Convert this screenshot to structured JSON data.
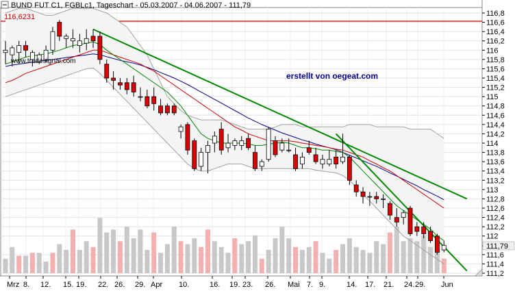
{
  "chart_data": {
    "type": "candlestick",
    "title": "BUND FUT C1, FGBLc1, Tageschart - 05.03.2007 - 04.06.2007 - 111,79",
    "watermark": "www.tradesignal.com",
    "annotation": "erstellt von oegeat.com",
    "resistance_label": "116,6231",
    "resistance_value": 116.6231,
    "grid": true,
    "ylim": [
      111.2,
      116.9
    ],
    "y_ticks": [
      "116,8",
      "116,6",
      "116,4",
      "116,2",
      "116",
      "115,8",
      "115,6",
      "115,4",
      "115,2",
      "115",
      "114,8",
      "114,6",
      "114,4",
      "114,2",
      "114",
      "113,8",
      "113,6",
      "113,4",
      "113,2",
      "113",
      "112,8",
      "112,6",
      "112,4",
      "112,2",
      "112",
      "111,79",
      "111,6",
      "111,4",
      "111,2"
    ],
    "x_ticks": [
      "Mrz",
      "8.",
      "12.",
      "15.",
      "19.",
      "22.",
      "26.",
      "29.",
      "Apr",
      "10.",
      "16.",
      "19.",
      "23.",
      "26.",
      "Mai",
      "7.",
      "9.",
      "14.",
      "17.",
      "21.",
      "24.",
      "29.",
      "Jun"
    ],
    "candles": [
      {
        "o": 115.95,
        "h": 116.2,
        "l": 115.7,
        "c": 116.0
      },
      {
        "o": 115.9,
        "h": 116.1,
        "l": 115.65,
        "c": 116.05
      },
      {
        "o": 115.95,
        "h": 116.2,
        "l": 115.7,
        "c": 116.1
      },
      {
        "o": 116.1,
        "h": 116.2,
        "l": 115.85,
        "c": 116.0
      },
      {
        "o": 115.8,
        "h": 116.0,
        "l": 115.65,
        "c": 115.95
      },
      {
        "o": 115.75,
        "h": 115.95,
        "l": 115.7,
        "c": 115.9
      },
      {
        "o": 115.8,
        "h": 116.1,
        "l": 115.75,
        "c": 116.0
      },
      {
        "o": 116.0,
        "h": 116.5,
        "l": 115.9,
        "c": 116.4
      },
      {
        "o": 116.6,
        "h": 116.65,
        "l": 116.2,
        "c": 116.3
      },
      {
        "o": 116.25,
        "h": 116.35,
        "l": 116.05,
        "c": 116.3
      },
      {
        "o": 116.2,
        "h": 116.45,
        "l": 116.05,
        "c": 116.25
      },
      {
        "o": 116.1,
        "h": 116.35,
        "l": 115.95,
        "c": 116.2
      },
      {
        "o": 116.15,
        "h": 116.45,
        "l": 116.0,
        "c": 116.25
      },
      {
        "o": 116.3,
        "h": 116.45,
        "l": 116.05,
        "c": 116.2
      },
      {
        "o": 116.3,
        "h": 116.4,
        "l": 115.7,
        "c": 115.8
      },
      {
        "o": 115.7,
        "h": 115.8,
        "l": 115.3,
        "c": 115.4
      },
      {
        "o": 115.4,
        "h": 115.55,
        "l": 115.15,
        "c": 115.35
      },
      {
        "o": 115.3,
        "h": 115.4,
        "l": 115.15,
        "c": 115.25
      },
      {
        "o": 115.3,
        "h": 115.4,
        "l": 115.05,
        "c": 115.15
      },
      {
        "o": 115.3,
        "h": 115.45,
        "l": 115.0,
        "c": 115.1
      },
      {
        "o": 115.0,
        "h": 115.2,
        "l": 114.9,
        "c": 115.0
      },
      {
        "o": 115.0,
        "h": 115.15,
        "l": 114.75,
        "c": 114.8
      },
      {
        "o": 115.0,
        "h": 115.2,
        "l": 114.7,
        "c": 114.85
      },
      {
        "o": 114.8,
        "h": 114.95,
        "l": 114.6,
        "c": 114.65
      },
      {
        "o": 114.8,
        "h": 114.85,
        "l": 114.6,
        "c": 114.65
      },
      {
        "o": 114.8,
        "h": 114.85,
        "l": 114.6,
        "c": 114.65
      },
      {
        "o": 114.25,
        "h": 114.4,
        "l": 114.1,
        "c": 114.35
      },
      {
        "o": 114.4,
        "h": 114.45,
        "l": 113.75,
        "c": 113.85
      },
      {
        "o": 114.05,
        "h": 114.1,
        "l": 113.4,
        "c": 113.45
      },
      {
        "o": 113.5,
        "h": 113.9,
        "l": 113.4,
        "c": 113.8
      },
      {
        "o": 113.8,
        "h": 114.05,
        "l": 113.35,
        "c": 113.95
      },
      {
        "o": 114.0,
        "h": 114.25,
        "l": 113.8,
        "c": 114.15
      },
      {
        "o": 114.3,
        "h": 114.45,
        "l": 113.75,
        "c": 113.85
      },
      {
        "o": 113.9,
        "h": 114.2,
        "l": 113.8,
        "c": 114.0
      },
      {
        "o": 113.95,
        "h": 114.1,
        "l": 113.85,
        "c": 114.05
      },
      {
        "o": 113.95,
        "h": 114.15,
        "l": 113.85,
        "c": 114.05
      },
      {
        "o": 114.1,
        "h": 114.2,
        "l": 113.85,
        "c": 113.9
      },
      {
        "o": 113.8,
        "h": 113.95,
        "l": 113.4,
        "c": 113.45
      },
      {
        "o": 113.5,
        "h": 113.65,
        "l": 113.4,
        "c": 113.6
      },
      {
        "o": 113.65,
        "h": 114.35,
        "l": 113.6,
        "c": 114.3
      },
      {
        "o": 114.05,
        "h": 114.15,
        "l": 113.7,
        "c": 113.75
      },
      {
        "o": 113.85,
        "h": 114.1,
        "l": 113.8,
        "c": 114.0
      },
      {
        "o": 113.85,
        "h": 114.1,
        "l": 113.8,
        "c": 113.85
      },
      {
        "o": 113.75,
        "h": 113.9,
        "l": 113.4,
        "c": 113.45
      },
      {
        "o": 113.55,
        "h": 113.8,
        "l": 113.45,
        "c": 113.7
      },
      {
        "o": 113.9,
        "h": 114.05,
        "l": 113.75,
        "c": 113.8
      },
      {
        "o": 113.75,
        "h": 113.9,
        "l": 113.55,
        "c": 113.6
      },
      {
        "o": 113.55,
        "h": 113.75,
        "l": 113.45,
        "c": 113.65
      },
      {
        "o": 113.55,
        "h": 113.85,
        "l": 113.5,
        "c": 113.65
      },
      {
        "o": 113.7,
        "h": 113.85,
        "l": 113.45,
        "c": 113.55
      },
      {
        "o": 113.6,
        "h": 114.2,
        "l": 113.55,
        "c": 113.7
      },
      {
        "o": 113.7,
        "h": 113.75,
        "l": 113.1,
        "c": 113.2
      },
      {
        "o": 113.1,
        "h": 113.2,
        "l": 112.85,
        "c": 112.95
      },
      {
        "o": 112.95,
        "h": 113.05,
        "l": 112.7,
        "c": 112.85
      },
      {
        "o": 112.85,
        "h": 112.95,
        "l": 112.65,
        "c": 112.85
      },
      {
        "o": 112.85,
        "h": 112.95,
        "l": 112.7,
        "c": 112.8
      },
      {
        "o": 112.8,
        "h": 112.9,
        "l": 112.6,
        "c": 112.8
      },
      {
        "o": 112.7,
        "h": 112.75,
        "l": 112.35,
        "c": 112.45
      },
      {
        "o": 112.4,
        "h": 112.6,
        "l": 112.2,
        "c": 112.3
      },
      {
        "o": 112.4,
        "h": 112.55,
        "l": 112.25,
        "c": 112.5
      },
      {
        "o": 112.6,
        "h": 112.65,
        "l": 112.0,
        "c": 112.05
      },
      {
        "o": 112.2,
        "h": 112.3,
        "l": 112.0,
        "c": 112.1
      },
      {
        "o": 112.2,
        "h": 112.3,
        "l": 111.95,
        "c": 112.05
      },
      {
        "o": 112.1,
        "h": 112.2,
        "l": 111.85,
        "c": 111.9
      },
      {
        "o": 112.0,
        "h": 112.05,
        "l": 111.6,
        "c": 111.65
      },
      {
        "o": 111.7,
        "h": 111.9,
        "l": 111.65,
        "c": 111.8
      }
    ],
    "volume": [
      {
        "v": 0.25,
        "up": false
      },
      {
        "v": 0.45,
        "up": false
      },
      {
        "v": 0.3,
        "up": true
      },
      {
        "v": 0.3,
        "up": false
      },
      {
        "v": 0.35,
        "up": true
      },
      {
        "v": 0.35,
        "up": false
      },
      {
        "v": 0.2,
        "up": false
      },
      {
        "v": 0.35,
        "up": true
      },
      {
        "v": 0.5,
        "up": false
      },
      {
        "v": 0.4,
        "up": false
      },
      {
        "v": 0.75,
        "up": true
      },
      {
        "v": 0.4,
        "up": false
      },
      {
        "v": 0.55,
        "up": false
      },
      {
        "v": 0.45,
        "up": true
      },
      {
        "v": 0.95,
        "up": false
      },
      {
        "v": 0.7,
        "up": false
      },
      {
        "v": 0.75,
        "up": false
      },
      {
        "v": 0.55,
        "up": true
      },
      {
        "v": 0.8,
        "up": false
      },
      {
        "v": 0.6,
        "up": false
      },
      {
        "v": 0.75,
        "up": false
      },
      {
        "v": 0.4,
        "up": false
      },
      {
        "v": 0.7,
        "up": true
      },
      {
        "v": 0.35,
        "up": false
      },
      {
        "v": 0.5,
        "up": false
      },
      {
        "v": 0.8,
        "up": false
      },
      {
        "v": 0.55,
        "up": true
      },
      {
        "v": 0.5,
        "up": false
      },
      {
        "v": 0.6,
        "up": false
      },
      {
        "v": 0.45,
        "up": true
      },
      {
        "v": 0.75,
        "up": true
      },
      {
        "v": 0.55,
        "up": false
      },
      {
        "v": 0.45,
        "up": false
      },
      {
        "v": 0.35,
        "up": false
      },
      {
        "v": 0.6,
        "up": true
      },
      {
        "v": 0.5,
        "up": false
      },
      {
        "v": 0.55,
        "up": false
      },
      {
        "v": 0.65,
        "up": false
      },
      {
        "v": 0.25,
        "up": true
      },
      {
        "v": 0.4,
        "up": false
      },
      {
        "v": 0.6,
        "up": false
      },
      {
        "v": 0.8,
        "up": false
      },
      {
        "v": 0.6,
        "up": false
      },
      {
        "v": 0.45,
        "up": true
      },
      {
        "v": 0.4,
        "up": false
      },
      {
        "v": 0.45,
        "up": false
      },
      {
        "v": 0.55,
        "up": true
      },
      {
        "v": 0.35,
        "up": false
      },
      {
        "v": 0.25,
        "up": false
      },
      {
        "v": 0.4,
        "up": true
      },
      {
        "v": 0.5,
        "up": false
      },
      {
        "v": 0.6,
        "up": false
      },
      {
        "v": 0.45,
        "up": false
      },
      {
        "v": 0.4,
        "up": false
      },
      {
        "v": 0.35,
        "up": false
      },
      {
        "v": 0.55,
        "up": false
      },
      {
        "v": 0.5,
        "up": false
      },
      {
        "v": 0.7,
        "up": true
      },
      {
        "v": 0.8,
        "up": false
      },
      {
        "v": 0.55,
        "up": false
      },
      {
        "v": 0.6,
        "up": false
      },
      {
        "v": 0.55,
        "up": false
      },
      {
        "v": 0.65,
        "up": false
      },
      {
        "v": 0.45,
        "up": false
      },
      {
        "v": 0.55,
        "up": false
      },
      {
        "v": 0.25,
        "up": true
      }
    ],
    "indicators": {
      "ma_fast": [
        115.7,
        115.75,
        115.8,
        115.85,
        115.88,
        115.9,
        115.92,
        115.96,
        116.0,
        116.05,
        116.1,
        116.12,
        116.15,
        116.18,
        116.12,
        116.0,
        115.9,
        115.8,
        115.7,
        115.6,
        115.5,
        115.4,
        115.3,
        115.2,
        115.1,
        114.95,
        114.8,
        114.6,
        114.4,
        114.2,
        114.1,
        114.05,
        114.0,
        114.0,
        114.0,
        114.0,
        113.98,
        113.95,
        113.95,
        113.98,
        114.0,
        114.02,
        114.0,
        113.95,
        113.9,
        113.9,
        113.88,
        113.85,
        113.85,
        113.82,
        113.8,
        113.7,
        113.55,
        113.4,
        113.25,
        113.1,
        112.95,
        112.8,
        112.65,
        112.55,
        112.45,
        112.35,
        112.25,
        112.15,
        112.0,
        111.9
      ],
      "ma_mid": [
        115.3,
        115.35,
        115.42,
        115.5,
        115.55,
        115.6,
        115.65,
        115.7,
        115.75,
        115.8,
        115.85,
        115.9,
        115.95,
        116.0,
        116.0,
        115.95,
        115.9,
        115.85,
        115.8,
        115.75,
        115.7,
        115.62,
        115.55,
        115.45,
        115.35,
        115.25,
        115.15,
        115.05,
        114.95,
        114.85,
        114.75,
        114.65,
        114.55,
        114.45,
        114.35,
        114.28,
        114.2,
        114.15,
        114.1,
        114.05,
        114.05,
        114.05,
        114.05,
        114.03,
        114.0,
        113.98,
        113.95,
        113.93,
        113.9,
        113.87,
        113.85,
        113.8,
        113.75,
        113.7,
        113.62,
        113.55,
        113.47,
        113.4,
        113.3,
        113.2,
        113.1,
        113.0,
        112.9,
        112.8,
        112.7,
        112.6
      ],
      "ma_slow": [
        115.65,
        115.68,
        115.7,
        115.72,
        115.74,
        115.76,
        115.78,
        115.8,
        115.82,
        115.84,
        115.86,
        115.88,
        115.9,
        115.92,
        115.9,
        115.86,
        115.82,
        115.78,
        115.75,
        115.72,
        115.68,
        115.63,
        115.58,
        115.52,
        115.46,
        115.4,
        115.33,
        115.26,
        115.18,
        115.1,
        115.02,
        114.94,
        114.86,
        114.78,
        114.7,
        114.62,
        114.54,
        114.47,
        114.4,
        114.34,
        114.28,
        114.22,
        114.17,
        114.12,
        114.07,
        114.03,
        113.98,
        113.94,
        113.9,
        113.86,
        113.8,
        113.74,
        113.68,
        113.62,
        113.56,
        113.5,
        113.43,
        113.36,
        113.29,
        113.22,
        113.15,
        113.08,
        113.0,
        112.93,
        112.86,
        112.78
      ],
      "bb_upper": [
        116.8,
        116.85,
        116.9,
        116.9,
        116.85,
        116.8,
        116.75,
        116.75,
        116.8,
        116.85,
        116.9,
        116.9,
        116.9,
        116.9,
        116.85,
        116.8,
        116.7,
        116.6,
        116.5,
        116.3,
        116.1,
        115.9,
        115.6,
        115.3,
        115.0,
        114.85,
        114.7,
        114.6,
        114.55,
        114.5,
        114.5,
        114.5,
        114.5,
        114.45,
        114.4,
        114.35,
        114.3,
        114.3,
        114.3,
        114.3,
        114.35,
        114.4,
        114.4,
        114.4,
        114.35,
        114.35,
        114.35,
        114.35,
        114.35,
        114.35,
        114.35,
        114.4,
        114.4,
        114.4,
        114.4,
        114.35,
        114.35,
        114.35,
        114.35,
        114.35,
        114.3,
        114.3,
        114.3,
        114.3,
        114.2,
        114.1
      ],
      "bb_lower": [
        115.0,
        115.05,
        115.1,
        115.15,
        115.2,
        115.25,
        115.3,
        115.35,
        115.4,
        115.45,
        115.5,
        115.55,
        115.6,
        115.62,
        115.5,
        115.35,
        115.2,
        115.05,
        114.9,
        114.75,
        114.6,
        114.45,
        114.3,
        114.15,
        114.0,
        113.85,
        113.7,
        113.55,
        113.45,
        113.4,
        113.4,
        113.45,
        113.5,
        113.55,
        113.55,
        113.55,
        113.5,
        113.45,
        113.45,
        113.45,
        113.45,
        113.45,
        113.45,
        113.45,
        113.45,
        113.45,
        113.42,
        113.4,
        113.38,
        113.36,
        113.3,
        113.2,
        113.05,
        112.9,
        112.75,
        112.6,
        112.45,
        112.3,
        112.15,
        112.0,
        111.9,
        111.8,
        111.7,
        111.6,
        111.5,
        111.4
      ]
    },
    "trendlines": [
      {
        "from": [
          13,
          116.45
        ],
        "to": [
          68,
          112.8
        ],
        "color": "#008800"
      },
      {
        "from": [
          49,
          114.2
        ],
        "to": [
          68,
          111.25
        ],
        "color": "#008800"
      }
    ]
  }
}
